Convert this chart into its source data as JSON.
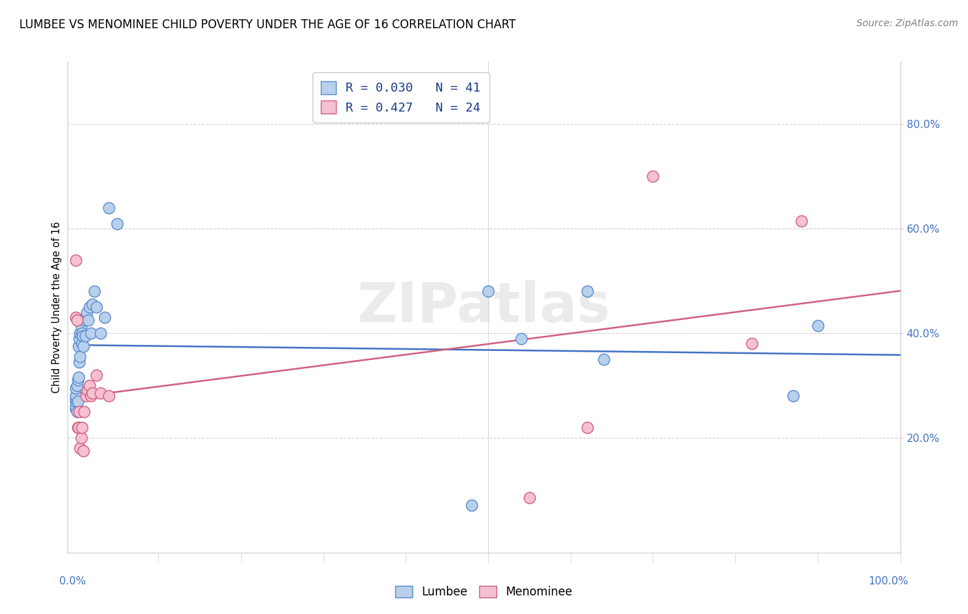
{
  "title": "LUMBEE VS MENOMINEE CHILD POVERTY UNDER THE AGE OF 16 CORRELATION CHART",
  "source": "Source: ZipAtlas.com",
  "ylabel": "Child Poverty Under the Age of 16",
  "watermark": "ZIPatlas",
  "lumbee": {
    "label": "Lumbee",
    "R": 0.03,
    "N": 41,
    "color": "#b8d0eb",
    "edge_color": "#5b8bd0",
    "line_color": "#4472c4",
    "x": [
      0.0,
      0.0,
      0.0,
      0.0,
      0.0,
      0.0,
      0.001,
      0.001,
      0.002,
      0.002,
      0.003,
      0.003,
      0.004,
      0.004,
      0.005,
      0.005,
      0.006,
      0.007,
      0.007,
      0.008,
      0.009,
      0.01,
      0.011,
      0.013,
      0.015,
      0.016,
      0.018,
      0.02,
      0.022,
      0.025,
      0.03,
      0.035,
      0.04,
      0.05,
      0.48,
      0.5,
      0.54,
      0.62,
      0.64,
      0.87,
      0.9
    ],
    "y": [
      0.255,
      0.26,
      0.27,
      0.275,
      0.28,
      0.295,
      0.25,
      0.3,
      0.27,
      0.31,
      0.315,
      0.375,
      0.345,
      0.39,
      0.355,
      0.4,
      0.415,
      0.38,
      0.4,
      0.395,
      0.375,
      0.425,
      0.395,
      0.44,
      0.425,
      0.45,
      0.4,
      0.455,
      0.48,
      0.45,
      0.4,
      0.43,
      0.64,
      0.61,
      0.07,
      0.48,
      0.39,
      0.48,
      0.35,
      0.28,
      0.415
    ]
  },
  "menominee": {
    "label": "Menominee",
    "R": 0.427,
    "N": 24,
    "color": "#f5c0d0",
    "edge_color": "#d06080",
    "line_color": "#d06080",
    "x": [
      0.0,
      0.0,
      0.001,
      0.002,
      0.003,
      0.004,
      0.005,
      0.006,
      0.007,
      0.009,
      0.01,
      0.012,
      0.014,
      0.016,
      0.018,
      0.02,
      0.025,
      0.03,
      0.04,
      0.55,
      0.62,
      0.7,
      0.82,
      0.88
    ],
    "y": [
      0.54,
      0.43,
      0.425,
      0.22,
      0.22,
      0.25,
      0.18,
      0.2,
      0.22,
      0.175,
      0.25,
      0.28,
      0.29,
      0.3,
      0.28,
      0.285,
      0.32,
      0.285,
      0.28,
      0.085,
      0.22,
      0.7,
      0.38,
      0.615
    ]
  },
  "xlim": [
    -0.01,
    1.0
  ],
  "ylim": [
    -0.02,
    0.92
  ],
  "yticks": [
    0.0,
    0.2,
    0.4,
    0.6,
    0.8
  ],
  "ytick_labels": [
    "",
    "20.0%",
    "40.0%",
    "60.0%",
    "80.0%"
  ],
  "background_color": "#ffffff",
  "grid_color": "#d0d0d0",
  "title_fontsize": 12,
  "source_fontsize": 10
}
